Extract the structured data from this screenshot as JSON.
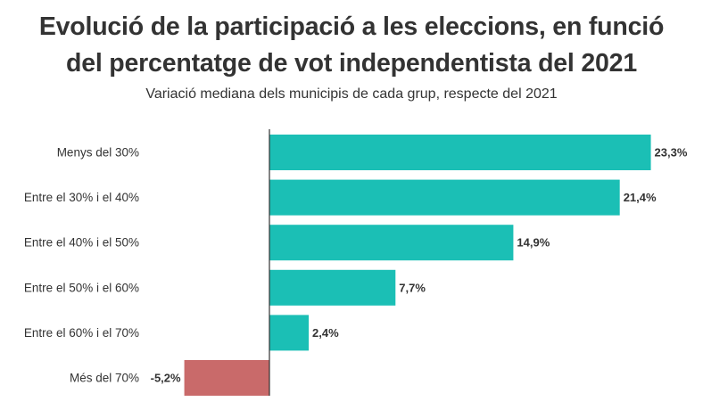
{
  "chart_data": {
    "type": "bar",
    "orientation": "horizontal",
    "title": "Evolució de la participació a les eleccions, en funció\ndel percentatge de vot independentista del 2021",
    "subtitle": "Variació mediana dels municipis de cada grup, respecte del 2021",
    "categories": [
      "Menys del 30%",
      "Entre el 30% i el 40%",
      "Entre el 40% i el 50%",
      "Entre el 50% i el 60%",
      "Entre el 60% i el 70%",
      "Més del 70%"
    ],
    "values": [
      23.3,
      21.4,
      14.9,
      7.7,
      2.4,
      -5.2
    ],
    "value_labels": [
      "23,3%",
      "21,4%",
      "14,9%",
      "7,7%",
      "2,4%",
      "-5,2%"
    ],
    "colors": {
      "positive": "#1bbfb5",
      "negative": "#c96a6a",
      "axis": "#333333"
    },
    "grid": false,
    "legend": "none"
  }
}
